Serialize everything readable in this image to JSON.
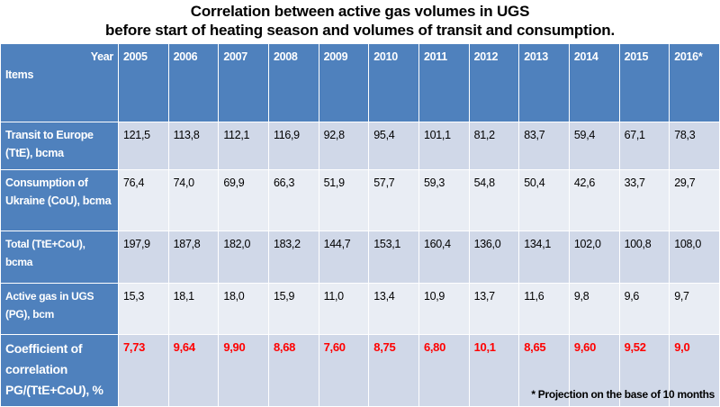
{
  "title": {
    "line1": "Correlation between active gas volumes in UGS",
    "line2": "before start of heating season and volumes of transit and consumption."
  },
  "table": {
    "corner_year": "Year",
    "corner_items": "Items",
    "years": [
      "2005",
      "2006",
      "2007",
      "2008",
      "2009",
      "2010",
      "2011",
      "2012",
      "2013",
      "2014",
      "2015",
      "2016*"
    ],
    "rows": [
      {
        "label": "Transit to Europe (TtE), bcma",
        "values": [
          "121,5",
          "113,8",
          "112,1",
          "116,9",
          "92,8",
          "95,4",
          "101,1",
          "81,2",
          "83,7",
          "59,4",
          "67,1",
          "78,3"
        ]
      },
      {
        "label": "Consumption of Ukraine (CoU), bcma",
        "values": [
          "76,4",
          "74,0",
          "69,9",
          "66,3",
          "51,9",
          "57,7",
          "59,3",
          "54,8",
          "50,4",
          "42,6",
          "33,7",
          "29,7"
        ]
      },
      {
        "label": "Total (TtE+CoU), bcma",
        "values": [
          "197,9",
          "187,8",
          "182,0",
          "183,2",
          "144,7",
          "153,1",
          "160,4",
          "136,0",
          "134,1",
          "102,0",
          "100,8",
          "108,0"
        ]
      },
      {
        "label": "Active gas in UGS (PG), bcm",
        "values": [
          "15,3",
          "18,1",
          "18,0",
          "15,9",
          "11,0",
          "13,4",
          "10,9",
          "13,7",
          "11,6",
          "9,8",
          "9,6",
          "9,7"
        ]
      },
      {
        "label": "Coefficient of correlation PG/(TtE+CoU), %",
        "values": [
          "7,73",
          "9,64",
          "9,90",
          "8,68",
          "7,60",
          "8,75",
          "6,80",
          "10,1",
          "8,65",
          "9,60",
          "9,52",
          "9,0"
        ]
      }
    ]
  },
  "footnote": "* Projection on the base of 10 months",
  "colors": {
    "header": "#4F81BD",
    "band_dark": "#D0D8E8",
    "band_light": "#E9EDF4",
    "highlight": "#FF0000"
  }
}
